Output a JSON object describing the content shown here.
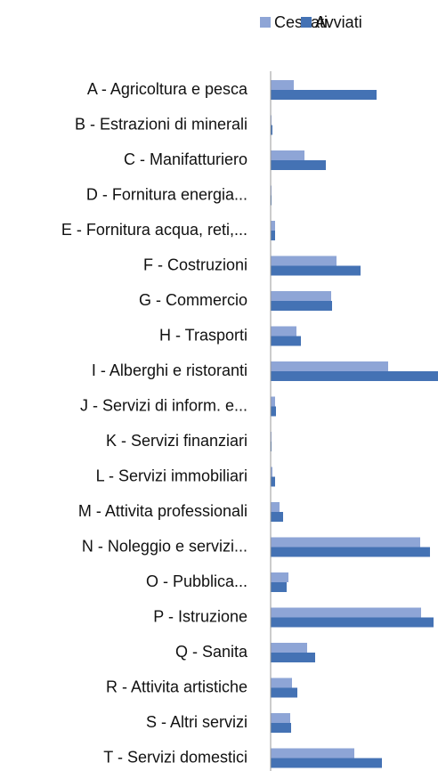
{
  "chart_data": {
    "type": "bar",
    "orientation": "horizontal",
    "categories": [
      "A - Agricoltura e pesca",
      "B - Estrazioni di minerali",
      "C - Manifatturiero",
      "D - Fornitura energia...",
      "E - Fornitura acqua, reti,...",
      "F - Costruzioni",
      "G - Commercio",
      "H - Trasporti",
      "I - Alberghi e ristoranti",
      "J - Servizi di inform. e...",
      "K - Servizi finanziari",
      "L - Servizi immobiliari",
      "M - Attivita professionali",
      "N - Noleggio e servizi...",
      "O - Pubblica...",
      "P - Istruzione",
      "Q - Sanita",
      "R - Attivita artistiche",
      "S - Altri servizi",
      "T - Servizi domestici"
    ],
    "series": [
      {
        "name": "Cessati",
        "color": "#8ea5d6",
        "values": [
          26,
          1,
          38,
          1,
          5,
          74,
          68,
          29,
          132,
          5,
          1,
          2,
          10,
          168,
          20,
          169,
          41,
          24,
          22,
          94
        ]
      },
      {
        "name": "Avviati",
        "color": "#4472b4",
        "values": [
          119,
          2,
          62,
          1,
          5,
          101,
          69,
          34,
          188,
          6,
          1,
          5,
          14,
          179,
          18,
          183,
          50,
          30,
          23,
          125
        ]
      }
    ],
    "legend": "top"
  }
}
